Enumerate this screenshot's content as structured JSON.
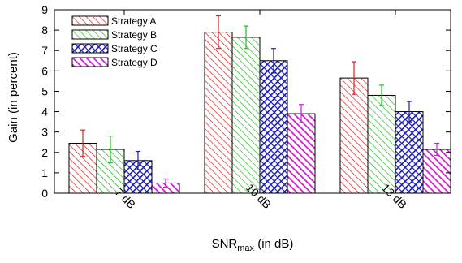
{
  "chart_data": {
    "type": "bar",
    "categories": [
      "7 dB",
      "10 dB",
      "13 dB"
    ],
    "series": [
      {
        "name": "Strategy A",
        "values": [
          2.45,
          7.9,
          5.65
        ],
        "errors": [
          0.65,
          0.8,
          0.8
        ],
        "color": "#e41a1c"
      },
      {
        "name": "Strategy B",
        "values": [
          2.15,
          7.65,
          4.8
        ],
        "errors": [
          0.65,
          0.55,
          0.5
        ],
        "color": "#22bb22"
      },
      {
        "name": "Strategy C",
        "values": [
          1.6,
          6.5,
          4.0
        ],
        "errors": [
          0.45,
          0.6,
          0.5
        ],
        "color": "#1a1ab5"
      },
      {
        "name": "Strategy D",
        "values": [
          0.5,
          3.9,
          2.15
        ],
        "errors": [
          0.2,
          0.45,
          0.3
        ],
        "color": "#d01cd0"
      }
    ],
    "title": "",
    "xlabel": "SNR",
    "xlabel_sub": "max",
    "xlabel_suffix": " (in dB)",
    "ylabel": "Gain (in percent)",
    "ylim": [
      0,
      9
    ],
    "yticks": [
      "0",
      "1",
      "2",
      "3",
      "4",
      "5",
      "6",
      "7",
      "8",
      "9"
    ],
    "grid": false,
    "legend_position": "top-left"
  }
}
